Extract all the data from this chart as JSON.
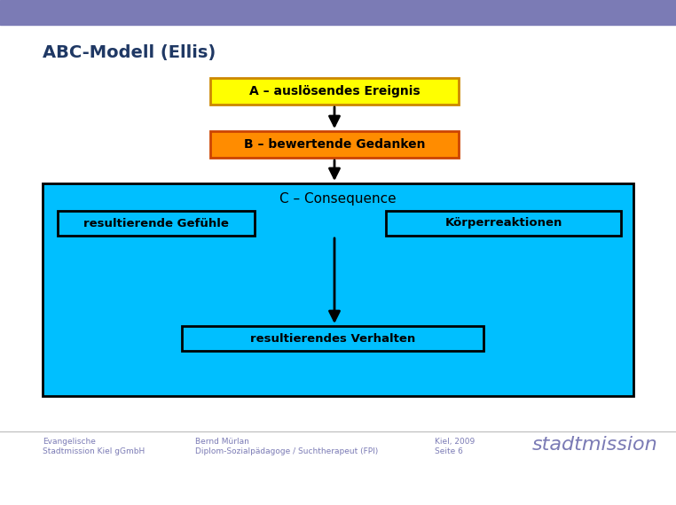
{
  "title": "ABC-Modell (Ellis)",
  "title_color": "#1F3864",
  "title_fontsize": 14,
  "bg_color": "#ffffff",
  "header_bar_color": "#7B7BB5",
  "box_A_text": "A – auslösendes Ereignis",
  "box_A_fill": "#FFFF00",
  "box_A_edge": "#CC8800",
  "box_B_text": "B – bewertende Gedanken",
  "box_B_fill": "#FF8C00",
  "box_B_edge": "#CC4400",
  "box_C_bg_fill": "#00BFFF",
  "box_C_bg_edge": "#000000",
  "box_C_title": "C – Consequence",
  "box_C1_text": "resultierende Gefühle",
  "box_C2_text": "Körperreaktionen",
  "box_C3_text": "resultierendes Verhalten",
  "box_inner_fill": "#00BFFF",
  "box_inner_edge": "#000000",
  "footer_left1": "Evangelische",
  "footer_left2": "Stadtmission Kiel gGmbH",
  "footer_mid1": "Bernd Mürlan",
  "footer_mid2": "Diplom-Sozialpädagoge / Suchtherapeut (FPI)",
  "footer_right1": "Kiel, 2009",
  "footer_right2": "Seite 6",
  "footer_logo": "stadtmission",
  "footer_color": "#7B7BB5",
  "arrow_color": "#000000",
  "fig_w": 7.62,
  "fig_h": 5.7,
  "dpi": 100
}
